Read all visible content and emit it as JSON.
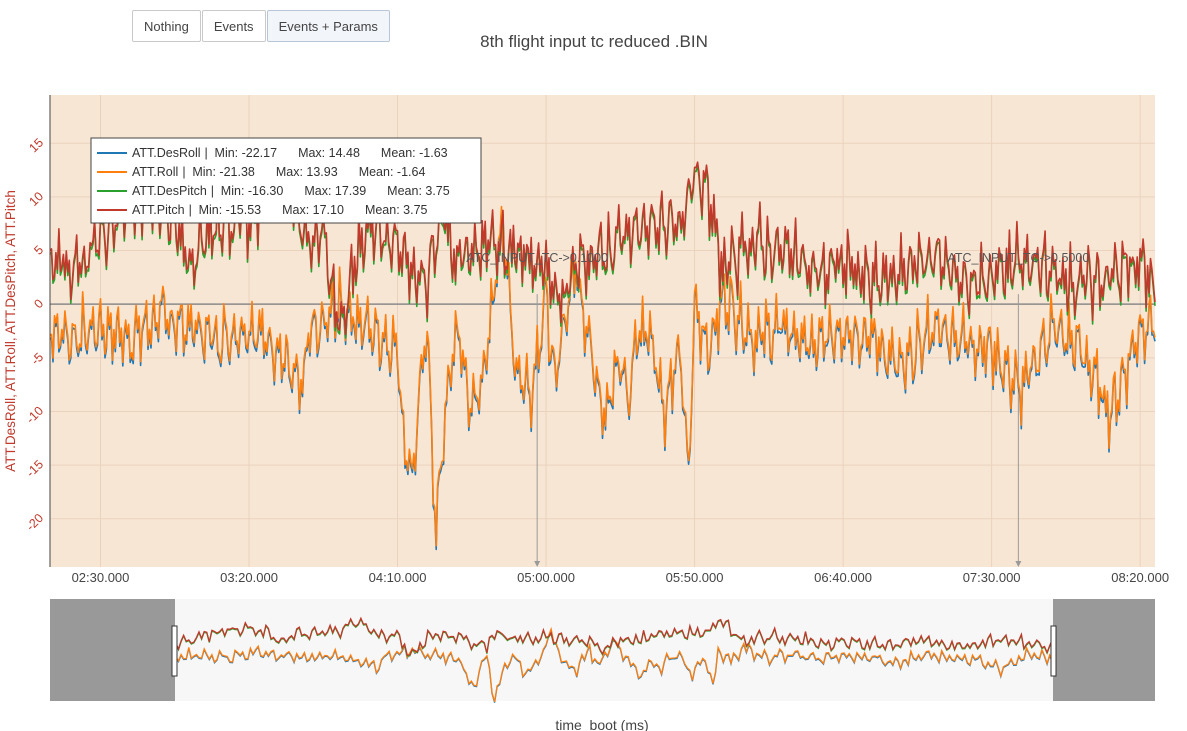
{
  "toolbar": {
    "buttons": [
      {
        "label": "Nothing",
        "active": false
      },
      {
        "label": "Events",
        "active": false
      },
      {
        "label": "Events + Params",
        "active": true
      }
    ]
  },
  "chart_data": {
    "type": "line",
    "title": "8th flight input tc reduced .BIN",
    "xlabel": "time_boot (ms)",
    "ylabel": "ATT.DesRoll, ATT.Roll, ATT.DesPitch, ATT.Pitch",
    "x_range_seconds": [
      133,
      505
    ],
    "ylim": [
      -24.5,
      19.5
    ],
    "x_tick_labels": [
      "02:30.000",
      "03:20.000",
      "04:10.000",
      "05:00.000",
      "05:50.000",
      "06:40.000",
      "07:30.000",
      "08:20.000"
    ],
    "x_tick_seconds": [
      150,
      200,
      250,
      300,
      350,
      400,
      450,
      500
    ],
    "y_ticks": [
      15,
      10,
      5,
      0,
      -5,
      -10,
      -15,
      -20
    ],
    "legend_position": "top-left",
    "grid": true,
    "colors": {
      "plot_bg": "#f8e6d5",
      "axis_text": "#c0392b",
      "range_bg": "#f7f7f7",
      "range_mask": "#999999"
    },
    "series": [
      {
        "name": "ATT.DesRoll",
        "color": "#1f77b4",
        "min": "-22.17",
        "max": "14.48",
        "mean": "-1.63",
        "min_label": "Min: -22.17",
        "max_label": "Max: 14.48",
        "mean_label": "Mean: -1.63"
      },
      {
        "name": "ATT.Roll",
        "color": "#ff7f0e",
        "min": "-21.38",
        "max": "13.93",
        "mean": "-1.64",
        "min_label": "Min: -21.38",
        "max_label": "Max: 13.93",
        "mean_label": "Mean: -1.64"
      },
      {
        "name": "ATT.DesPitch",
        "color": "#2ca02c",
        "min": "-16.30",
        "max": "17.39",
        "mean": "3.75",
        "min_label": "Min: -16.30",
        "max_label": "Max: 17.39",
        "mean_label": "Mean: 3.75"
      },
      {
        "name": "ATT.Pitch",
        "color": "#c0392b",
        "min": "-15.53",
        "max": "17.10",
        "mean": "3.75",
        "min_label": "Min: -15.53",
        "max_label": "Max: 17.10",
        "mean_label": "Mean: 3.75"
      }
    ],
    "roll_keypoints": {
      "x": [
        133,
        140,
        150,
        160,
        170,
        180,
        190,
        200,
        210,
        218,
        220,
        225,
        230,
        240,
        250,
        252,
        255,
        258,
        260,
        263,
        266,
        270,
        275,
        280,
        285,
        290,
        295,
        300,
        303,
        305,
        310,
        315,
        320,
        325,
        328,
        330,
        335,
        340,
        345,
        348,
        350,
        355,
        360,
        370,
        380,
        390,
        400,
        410,
        420,
        430,
        440,
        450,
        460,
        470,
        480,
        490,
        495,
        500,
        505
      ],
      "y": [
        -2,
        -3,
        -2,
        -3,
        -1,
        -2,
        -3,
        -2,
        -4,
        -8,
        -3,
        -2,
        0,
        -2,
        -4,
        -12,
        -16,
        -6,
        -3,
        -21,
        -10,
        -2,
        -10,
        -5,
        8,
        -6,
        -8,
        1,
        -8,
        -3,
        4,
        -4,
        -10,
        -5,
        -9,
        -3,
        -2,
        -10,
        -4,
        -16,
        0,
        -4,
        1,
        -3,
        -2,
        -4,
        -2,
        -3,
        -6,
        -2,
        -3,
        -4,
        -8,
        -2,
        -4,
        -10,
        -6,
        -2,
        -1
      ]
    },
    "pitch_keypoints": {
      "x": [
        133,
        140,
        150,
        160,
        170,
        180,
        190,
        200,
        210,
        220,
        225,
        230,
        240,
        250,
        255,
        260,
        265,
        270,
        280,
        290,
        300,
        305,
        310,
        320,
        330,
        340,
        345,
        350,
        355,
        360,
        370,
        380,
        390,
        400,
        410,
        420,
        430,
        440,
        450,
        460,
        470,
        480,
        490,
        500,
        505
      ],
      "y": [
        5,
        3,
        6,
        9,
        10,
        4,
        8,
        8,
        12,
        6,
        7,
        -2,
        8,
        5,
        3,
        2,
        9,
        4,
        6,
        5,
        3,
        0,
        4,
        5,
        7,
        8,
        6,
        13,
        9,
        3,
        6,
        5,
        3,
        4,
        2,
        3,
        5,
        2,
        3,
        4,
        3,
        2,
        3,
        4,
        2
      ]
    },
    "annotations": [
      {
        "text": "ATC_INPUT_TC->0.1000",
        "x": 297
      },
      {
        "text": "ATC_INPUT_TC->0.5000",
        "x": 459
      }
    ],
    "range_selector": {
      "selected": [
        133,
        505
      ],
      "full": [
        90,
        520
      ]
    }
  }
}
